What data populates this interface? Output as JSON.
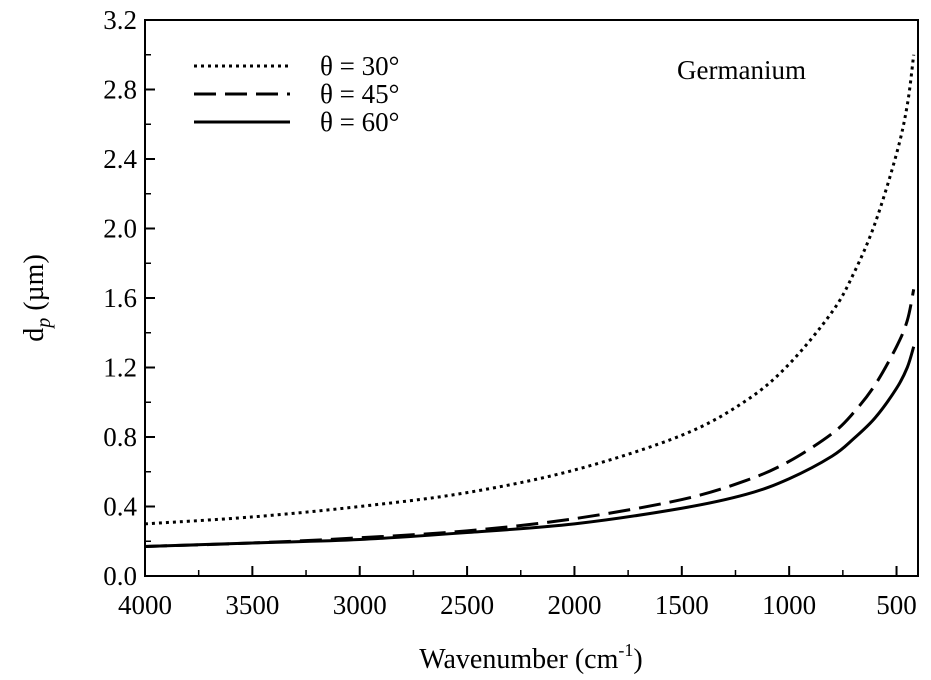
{
  "chart_data": {
    "type": "line",
    "xlabel": "Wavenumber (cm",
    "xlabel_sup": "-1",
    "xlabel_close": ")",
    "ylabel_main": "d",
    "ylabel_sub": "p",
    "ylabel_unit": " (µm)",
    "annotation": "Germanium",
    "xlim": [
      4000,
      400
    ],
    "ylim": [
      0.0,
      3.2
    ],
    "x_reversed": true,
    "xticks": [
      4000,
      3500,
      3000,
      2500,
      2000,
      1500,
      1000,
      500
    ],
    "xtick_labels": [
      "4000",
      "3500",
      "3000",
      "2500",
      "2000",
      "1500",
      "1000",
      "500"
    ],
    "yticks": [
      0.0,
      0.4,
      0.8,
      1.2,
      1.6,
      2.0,
      2.4,
      2.8,
      3.2
    ],
    "ytick_labels": [
      "0.0",
      "0.4",
      "0.8",
      "1.2",
      "1.6",
      "2.0",
      "2.4",
      "2.8",
      "3.2"
    ],
    "grid": false,
    "legend_position": "top-left",
    "series": [
      {
        "name": "θ = 30°",
        "style": "dotted",
        "x": [
          4000,
          3500,
          3000,
          2500,
          2000,
          1500,
          1200,
          1000,
          800,
          700,
          600,
          500,
          450,
          420
        ],
        "y": [
          0.3,
          0.34,
          0.4,
          0.48,
          0.61,
          0.81,
          1.01,
          1.22,
          1.52,
          1.74,
          2.03,
          2.43,
          2.71,
          3.0
        ]
      },
      {
        "name": "θ = 45°",
        "style": "dashed",
        "x": [
          4000,
          3500,
          3000,
          2500,
          2000,
          1500,
          1200,
          1000,
          800,
          700,
          600,
          500,
          450,
          420
        ],
        "y": [
          0.17,
          0.19,
          0.22,
          0.26,
          0.33,
          0.44,
          0.55,
          0.66,
          0.82,
          0.94,
          1.1,
          1.32,
          1.47,
          1.65
        ]
      },
      {
        "name": "θ = 60°",
        "style": "solid",
        "x": [
          4000,
          3500,
          3000,
          2500,
          2000,
          1500,
          1200,
          1000,
          800,
          700,
          600,
          500,
          450,
          420
        ],
        "y": [
          0.17,
          0.19,
          0.21,
          0.25,
          0.3,
          0.39,
          0.47,
          0.56,
          0.69,
          0.79,
          0.91,
          1.08,
          1.2,
          1.32
        ]
      }
    ]
  }
}
